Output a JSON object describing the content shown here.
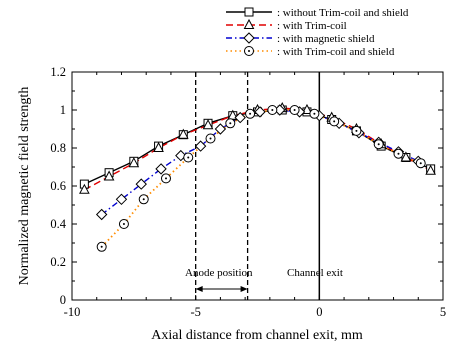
{
  "chart_data": {
    "type": "line",
    "title": "",
    "xlabel": "Axial distance from channel exit, mm",
    "ylabel": "Normalized magnetic field strength",
    "xlim": [
      -10,
      5
    ],
    "ylim": [
      0,
      1.2
    ],
    "xticks": [
      "-10",
      "-5",
      "0",
      "5"
    ],
    "yticks": [
      "0",
      "0.2",
      "0.4",
      "0.6",
      "0.8",
      "1",
      "1.2"
    ],
    "grid": false,
    "legend_position": "top-right, above plot",
    "series": [
      {
        "name": ": without Trim-coil and shield",
        "color": "#000000",
        "dash": "solid",
        "marker": "square",
        "x": [
          -9.5,
          -8.5,
          -7.5,
          -6.5,
          -5.5,
          -4.5,
          -3.5,
          -2.5,
          -1.5,
          -0.5,
          0.5,
          1.5,
          2.5,
          3.5,
          4.5
        ],
        "y": [
          0.61,
          0.67,
          0.73,
          0.81,
          0.87,
          0.93,
          0.97,
          0.99,
          1.0,
          0.99,
          0.95,
          0.89,
          0.81,
          0.75,
          0.69
        ]
      },
      {
        "name": ": with Trim-coil",
        "color": "#e00000",
        "dash": "dashed",
        "marker": "triangle",
        "x": [
          -9.5,
          -8.5,
          -7.5,
          -6.5,
          -5.5,
          -4.5,
          -3.5,
          -2.5,
          -1.5,
          -0.5,
          0.5,
          1.5,
          2.5,
          3.5,
          4.5
        ],
        "y": [
          0.58,
          0.65,
          0.72,
          0.8,
          0.87,
          0.92,
          0.97,
          1.0,
          1.01,
          1.0,
          0.96,
          0.9,
          0.82,
          0.75,
          0.68
        ]
      },
      {
        "name": ": with magnetic shield",
        "color": "#0000d0",
        "dash": "dashdot",
        "marker": "diamond",
        "x": [
          -8.8,
          -8.0,
          -7.2,
          -6.4,
          -5.6,
          -4.8,
          -4.0,
          -3.2,
          -2.4,
          -1.6,
          -0.8,
          0.0,
          0.8,
          1.6,
          2.4,
          3.2,
          4.0
        ],
        "y": [
          0.45,
          0.53,
          0.61,
          0.69,
          0.76,
          0.81,
          0.9,
          0.96,
          0.99,
          1.0,
          0.99,
          0.97,
          0.93,
          0.88,
          0.83,
          0.78,
          0.73
        ]
      },
      {
        "name": ": with Trim-coil and shield",
        "color": "#ff8c00",
        "dash": "dotted",
        "marker": "circle-dot",
        "x": [
          -8.8,
          -7.9,
          -7.1,
          -6.2,
          -5.3,
          -4.4,
          -3.6,
          -2.8,
          -1.9,
          -1.0,
          -0.2,
          0.6,
          1.5,
          2.4,
          3.2,
          4.1
        ],
        "y": [
          0.28,
          0.4,
          0.53,
          0.64,
          0.75,
          0.85,
          0.93,
          0.98,
          1.0,
          1.0,
          0.98,
          0.94,
          0.89,
          0.82,
          0.77,
          0.72
        ]
      }
    ],
    "annotations": {
      "anode_label": "Anode position",
      "anode_lines_x": [
        -5,
        -2.9
      ],
      "channel_label": "Channel exit",
      "channel_line_x": 0
    }
  }
}
